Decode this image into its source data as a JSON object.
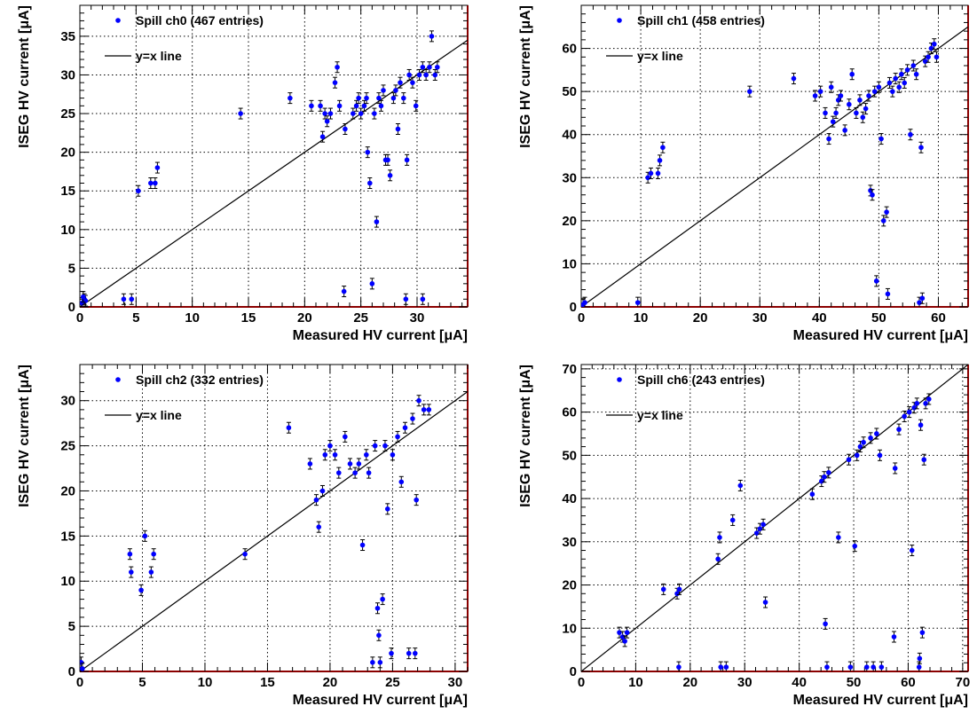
{
  "colors": {
    "marker": "#0000ff",
    "error_bar": "#000000",
    "line": "#000000",
    "frame_right": "#8b0000",
    "grid": "#000000"
  },
  "chart_data": [
    {
      "type": "scatter",
      "panel": "top-left",
      "xlabel": "Measured HV current [μA]",
      "ylabel": "ISEG HV current [μA]",
      "xlim": [
        0,
        34.5
      ],
      "ylim": [
        0,
        39
      ],
      "xticks": [
        0,
        5,
        10,
        15,
        20,
        25,
        30
      ],
      "yticks": [
        0,
        5,
        10,
        15,
        20,
        25,
        30,
        35
      ],
      "grid": true,
      "legend_position": "top-left",
      "series": [
        {
          "name": "Spill ch0 (467 entries)",
          "kind": "points",
          "points": [
            [
              0.2,
              0.5
            ],
            [
              0.4,
              1
            ],
            [
              0.5,
              0.8
            ],
            [
              0.3,
              1.3
            ],
            [
              3.9,
              1
            ],
            [
              4.6,
              1
            ],
            [
              5.2,
              15
            ],
            [
              6.3,
              16
            ],
            [
              6.7,
              16
            ],
            [
              6.9,
              18
            ],
            [
              14.3,
              25
            ],
            [
              18.7,
              27
            ],
            [
              20.6,
              26
            ],
            [
              21.4,
              26
            ],
            [
              21.6,
              22
            ],
            [
              21.8,
              25
            ],
            [
              22.0,
              24
            ],
            [
              22.3,
              25
            ],
            [
              22.7,
              29
            ],
            [
              22.9,
              31
            ],
            [
              23.1,
              26
            ],
            [
              23.5,
              2
            ],
            [
              23.6,
              23
            ],
            [
              24.3,
              25
            ],
            [
              24.6,
              26
            ],
            [
              24.8,
              27
            ],
            [
              25.0,
              25
            ],
            [
              25.3,
              26
            ],
            [
              25.5,
              27
            ],
            [
              25.6,
              20
            ],
            [
              25.8,
              16
            ],
            [
              26.0,
              3
            ],
            [
              26.2,
              25
            ],
            [
              26.4,
              11
            ],
            [
              26.6,
              27
            ],
            [
              26.8,
              26
            ],
            [
              27.0,
              28
            ],
            [
              27.2,
              19
            ],
            [
              27.4,
              19
            ],
            [
              27.6,
              17
            ],
            [
              27.9,
              27
            ],
            [
              28.1,
              28
            ],
            [
              28.3,
              23
            ],
            [
              28.5,
              29
            ],
            [
              28.8,
              27
            ],
            [
              29.1,
              19
            ],
            [
              29.3,
              30
            ],
            [
              29.6,
              29
            ],
            [
              29.9,
              26
            ],
            [
              30.2,
              30
            ],
            [
              30.5,
              31
            ],
            [
              30.8,
              30
            ],
            [
              31.1,
              31
            ],
            [
              31.3,
              35
            ],
            [
              31.6,
              30
            ],
            [
              31.8,
              31
            ],
            [
              29.0,
              1
            ],
            [
              30.5,
              1
            ]
          ]
        },
        {
          "name": "y=x line",
          "kind": "line",
          "points": [
            [
              0,
              0
            ],
            [
              34.5,
              34.5
            ]
          ]
        }
      ]
    },
    {
      "type": "scatter",
      "panel": "top-right",
      "xlabel": "Measured HV current [μA]",
      "ylabel": "ISEG HV current [μA]",
      "xlim": [
        0,
        65
      ],
      "ylim": [
        0,
        70
      ],
      "xticks": [
        0,
        10,
        20,
        30,
        40,
        50,
        60
      ],
      "yticks": [
        0,
        10,
        20,
        30,
        40,
        50,
        60
      ],
      "grid": true,
      "legend_position": "top-left",
      "series": [
        {
          "name": "Spill ch1 (458 entries)",
          "kind": "points",
          "points": [
            [
              0.3,
              0.5
            ],
            [
              0.6,
              1
            ],
            [
              9.5,
              1
            ],
            [
              11.2,
              30
            ],
            [
              11.7,
              31
            ],
            [
              12.9,
              31
            ],
            [
              13.2,
              34
            ],
            [
              13.7,
              37
            ],
            [
              28.3,
              50
            ],
            [
              35.7,
              53
            ],
            [
              39.3,
              49
            ],
            [
              40.2,
              50
            ],
            [
              41.0,
              45
            ],
            [
              41.6,
              39
            ],
            [
              42.0,
              51
            ],
            [
              42.3,
              43
            ],
            [
              42.8,
              45
            ],
            [
              43.2,
              48
            ],
            [
              43.6,
              49
            ],
            [
              44.3,
              41
            ],
            [
              45.0,
              47
            ],
            [
              45.5,
              54
            ],
            [
              46.2,
              45
            ],
            [
              46.8,
              48
            ],
            [
              47.3,
              44
            ],
            [
              47.8,
              46
            ],
            [
              48.3,
              49
            ],
            [
              48.6,
              27
            ],
            [
              48.9,
              26
            ],
            [
              49.3,
              50
            ],
            [
              49.6,
              6
            ],
            [
              50.0,
              51
            ],
            [
              50.4,
              39
            ],
            [
              50.8,
              20
            ],
            [
              51.3,
              22
            ],
            [
              51.5,
              3
            ],
            [
              51.8,
              52
            ],
            [
              52.3,
              50
            ],
            [
              52.8,
              53
            ],
            [
              53.4,
              51
            ],
            [
              53.8,
              54
            ],
            [
              54.3,
              52
            ],
            [
              54.8,
              55
            ],
            [
              55.3,
              40
            ],
            [
              55.8,
              56
            ],
            [
              56.3,
              54
            ],
            [
              56.8,
              1
            ],
            [
              57.1,
              37
            ],
            [
              57.3,
              2
            ],
            [
              57.8,
              57
            ],
            [
              58.3,
              58
            ],
            [
              58.8,
              60
            ],
            [
              59.3,
              61
            ],
            [
              59.7,
              58
            ]
          ]
        },
        {
          "name": "y=x line",
          "kind": "line",
          "points": [
            [
              0,
              0
            ],
            [
              65,
              65
            ]
          ]
        }
      ]
    },
    {
      "type": "scatter",
      "panel": "bottom-left",
      "xlabel": "Measured HV current [μA]",
      "ylabel": "ISEG HV current [μA]",
      "xlim": [
        0,
        31
      ],
      "ylim": [
        0,
        34
      ],
      "xticks": [
        0,
        5,
        10,
        15,
        20,
        25,
        30
      ],
      "yticks": [
        0,
        5,
        10,
        15,
        20,
        25,
        30
      ],
      "grid": true,
      "legend_position": "top-left",
      "series": [
        {
          "name": "Spill ch2 (332 entries)",
          "kind": "points",
          "points": [
            [
              0.1,
              1
            ],
            [
              0.2,
              0.3
            ],
            [
              4.0,
              13
            ],
            [
              4.1,
              11
            ],
            [
              4.9,
              9
            ],
            [
              5.2,
              15
            ],
            [
              5.7,
              11
            ],
            [
              5.9,
              13
            ],
            [
              13.2,
              13
            ],
            [
              16.7,
              27
            ],
            [
              18.4,
              23
            ],
            [
              18.9,
              19
            ],
            [
              19.1,
              16
            ],
            [
              19.4,
              20
            ],
            [
              19.6,
              24
            ],
            [
              20.0,
              25
            ],
            [
              20.4,
              24
            ],
            [
              20.7,
              22
            ],
            [
              21.2,
              26
            ],
            [
              21.6,
              23
            ],
            [
              22.0,
              22
            ],
            [
              22.3,
              23
            ],
            [
              22.6,
              14
            ],
            [
              22.9,
              24
            ],
            [
              23.1,
              22
            ],
            [
              23.4,
              1
            ],
            [
              23.6,
              25
            ],
            [
              23.8,
              7
            ],
            [
              23.9,
              4
            ],
            [
              24.0,
              1
            ],
            [
              24.2,
              8
            ],
            [
              24.4,
              25
            ],
            [
              24.6,
              18
            ],
            [
              24.9,
              2
            ],
            [
              25.0,
              24
            ],
            [
              25.4,
              26
            ],
            [
              25.7,
              21
            ],
            [
              26.0,
              27
            ],
            [
              26.3,
              2
            ],
            [
              26.6,
              28
            ],
            [
              26.8,
              2
            ],
            [
              26.9,
              19
            ],
            [
              27.1,
              30
            ],
            [
              27.5,
              29
            ],
            [
              27.9,
              29
            ]
          ]
        },
        {
          "name": "y=x line",
          "kind": "line",
          "points": [
            [
              0,
              0
            ],
            [
              31,
              31
            ]
          ]
        }
      ]
    },
    {
      "type": "scatter",
      "panel": "bottom-right",
      "xlabel": "Measured HV current [μA]",
      "ylabel": "ISEG HV current [μA]",
      "xlim": [
        0,
        71
      ],
      "ylim": [
        0,
        71
      ],
      "xticks": [
        0,
        10,
        20,
        30,
        40,
        50,
        60,
        70
      ],
      "yticks": [
        0,
        10,
        20,
        30,
        40,
        50,
        60,
        70
      ],
      "grid": true,
      "legend_position": "top-left",
      "series": [
        {
          "name": "Spill ch6 (243 entries)",
          "kind": "points",
          "points": [
            [
              7.0,
              9
            ],
            [
              7.6,
              8
            ],
            [
              8.0,
              7
            ],
            [
              8.4,
              9
            ],
            [
              15.1,
              19
            ],
            [
              17.6,
              18
            ],
            [
              17.9,
              1
            ],
            [
              18.0,
              19
            ],
            [
              25.1,
              26
            ],
            [
              25.4,
              31
            ],
            [
              25.6,
              1
            ],
            [
              26.6,
              1
            ],
            [
              27.8,
              35
            ],
            [
              29.2,
              43
            ],
            [
              32.2,
              32
            ],
            [
              32.8,
              33
            ],
            [
              33.4,
              34
            ],
            [
              33.8,
              16
            ],
            [
              42.4,
              41
            ],
            [
              44.1,
              44
            ],
            [
              44.6,
              45
            ],
            [
              44.8,
              11
            ],
            [
              45.1,
              1
            ],
            [
              45.4,
              46
            ],
            [
              47.2,
              31
            ],
            [
              49.1,
              49
            ],
            [
              49.4,
              1
            ],
            [
              50.2,
              29
            ],
            [
              50.6,
              50
            ],
            [
              51.2,
              52
            ],
            [
              51.8,
              53
            ],
            [
              52.4,
              1
            ],
            [
              53.1,
              54
            ],
            [
              53.6,
              1
            ],
            [
              54.2,
              55
            ],
            [
              54.8,
              50
            ],
            [
              55.1,
              1
            ],
            [
              57.4,
              8
            ],
            [
              57.6,
              47
            ],
            [
              58.3,
              56
            ],
            [
              59.3,
              59
            ],
            [
              60.2,
              60
            ],
            [
              60.7,
              28
            ],
            [
              61.1,
              61
            ],
            [
              61.6,
              62
            ],
            [
              62.0,
              1
            ],
            [
              62.1,
              3
            ],
            [
              62.3,
              57
            ],
            [
              62.6,
              9
            ],
            [
              62.9,
              49
            ],
            [
              63.2,
              62
            ],
            [
              63.8,
              63
            ]
          ]
        },
        {
          "name": "y=x line",
          "kind": "line",
          "points": [
            [
              0,
              0
            ],
            [
              71,
              71
            ]
          ]
        }
      ]
    }
  ]
}
